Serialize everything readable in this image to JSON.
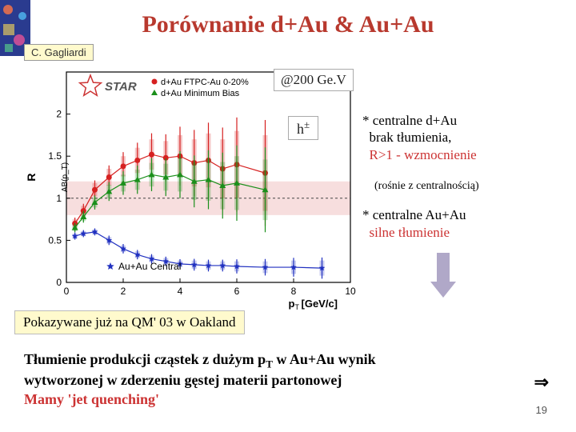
{
  "title": "Porównanie  d+Au  &  Au+Au",
  "author": "C. Gagliardi",
  "energy_label": "@200 Ge.V",
  "particle_label": "h",
  "particle_sup": "±",
  "note1_ast": "* centralne d+Au",
  "note1_line2": "brak tłumienia,",
  "note1_line3": "R>1 - wzmocnienie",
  "note1_sub": "(rośnie z centralnością)",
  "note2_ast": "* centralne Au+Au",
  "note2_line2": "silne tłumienie",
  "shown_label": "Pokazywane już na QM' 03 w Oakland",
  "bottom_line1a": "Tłumienie produkcji cząstek z dużym p",
  "bottom_line1b": " w Au+Au  wynik",
  "bottom_line2": "wytworzonej w zderzeniu gęstej materii partonowej",
  "bottom_line3": "Mamy 'jet quenching'",
  "page_num": "19",
  "chart": {
    "xlabel": "p_T [GeV/c]",
    "ylabel": "R_AB(p_T)",
    "xlim": [
      0,
      10
    ],
    "ylim": [
      0,
      2.5
    ],
    "xticks": [
      0,
      2,
      4,
      6,
      8,
      10
    ],
    "yticks": [
      0,
      0.5,
      1,
      1.5,
      2
    ],
    "legend": {
      "star": "STAR",
      "items": [
        {
          "label": "d+Au FTPC-Au 0-20%",
          "color": "#d62020",
          "marker": "circle"
        },
        {
          "label": "d+Au Minimum Bias",
          "color": "#1a8f1a",
          "marker": "triangle"
        },
        {
          "label": "Au+Au Central",
          "color": "#2030c0",
          "marker": "star"
        }
      ]
    },
    "series": {
      "dau_central": {
        "color": "#d62020",
        "pts": [
          [
            0.3,
            0.7,
            0.05
          ],
          [
            0.6,
            0.85,
            0.06
          ],
          [
            1.0,
            1.1,
            0.08
          ],
          [
            1.5,
            1.25,
            0.1
          ],
          [
            2.0,
            1.38,
            0.12
          ],
          [
            2.5,
            1.45,
            0.15
          ],
          [
            3.0,
            1.52,
            0.18
          ],
          [
            3.5,
            1.48,
            0.2
          ],
          [
            4.0,
            1.5,
            0.25
          ],
          [
            4.5,
            1.42,
            0.28
          ],
          [
            5.0,
            1.45,
            0.32
          ],
          [
            5.5,
            1.35,
            0.35
          ],
          [
            6.0,
            1.4,
            0.4
          ],
          [
            7.0,
            1.3,
            0.45
          ]
        ]
      },
      "dau_minbias": {
        "color": "#1a8f1a",
        "pts": [
          [
            0.3,
            0.65,
            0.04
          ],
          [
            0.6,
            0.78,
            0.05
          ],
          [
            1.0,
            0.95,
            0.06
          ],
          [
            1.5,
            1.08,
            0.08
          ],
          [
            2.0,
            1.18,
            0.1
          ],
          [
            2.5,
            1.22,
            0.12
          ],
          [
            3.0,
            1.28,
            0.14
          ],
          [
            3.5,
            1.25,
            0.16
          ],
          [
            4.0,
            1.28,
            0.2
          ],
          [
            4.5,
            1.2,
            0.22
          ],
          [
            5.0,
            1.22,
            0.25
          ],
          [
            5.5,
            1.15,
            0.28
          ],
          [
            6.0,
            1.18,
            0.32
          ],
          [
            7.0,
            1.1,
            0.36
          ]
        ]
      },
      "auau": {
        "color": "#2030c0",
        "pts": [
          [
            0.3,
            0.55,
            0.03
          ],
          [
            0.6,
            0.58,
            0.03
          ],
          [
            1.0,
            0.6,
            0.03
          ],
          [
            1.5,
            0.5,
            0.04
          ],
          [
            2.0,
            0.4,
            0.04
          ],
          [
            2.5,
            0.33,
            0.04
          ],
          [
            3.0,
            0.28,
            0.04
          ],
          [
            3.5,
            0.25,
            0.04
          ],
          [
            4.0,
            0.22,
            0.04
          ],
          [
            4.5,
            0.21,
            0.05
          ],
          [
            5.0,
            0.2,
            0.05
          ],
          [
            5.5,
            0.2,
            0.05
          ],
          [
            6.0,
            0.19,
            0.06
          ],
          [
            7.0,
            0.18,
            0.07
          ],
          [
            8.0,
            0.18,
            0.08
          ],
          [
            9.0,
            0.17,
            0.09
          ]
        ]
      }
    },
    "band": {
      "color": "#f7dede",
      "from": 0.8,
      "to": 1.2
    }
  },
  "colors": {
    "title": "#b8392e",
    "highlight": "#cc3333",
    "authorbox_bg": "#fffacd",
    "arrow": "#b0a8c8"
  }
}
